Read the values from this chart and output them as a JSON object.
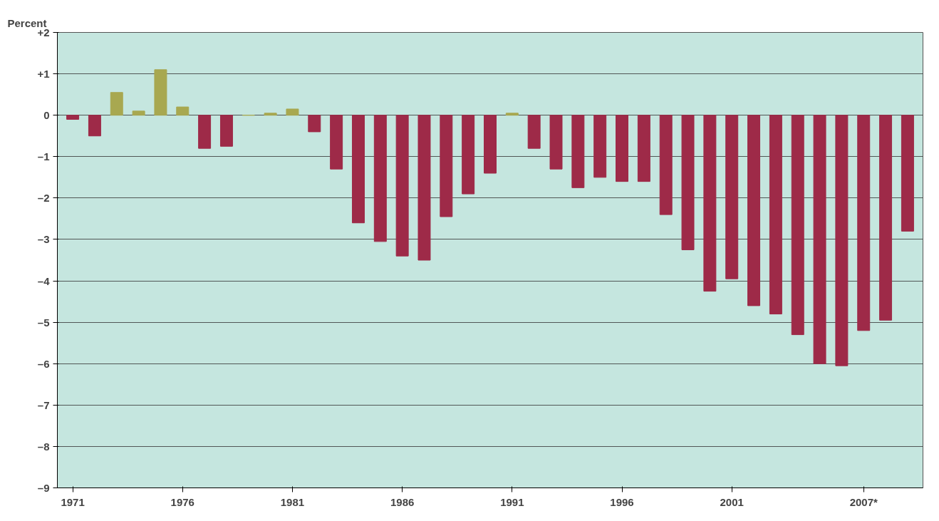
{
  "chart_data": {
    "type": "bar",
    "ylabel": "Percent",
    "categories": [
      "1971",
      null,
      null,
      null,
      null,
      "1976",
      null,
      null,
      null,
      null,
      "1981",
      null,
      null,
      null,
      null,
      "1986",
      null,
      null,
      null,
      null,
      "1991",
      null,
      null,
      null,
      null,
      "1996",
      null,
      null,
      null,
      null,
      "2001",
      null,
      null,
      null,
      null,
      null,
      "2007*",
      null,
      null
    ],
    "values": [
      -0.1,
      -0.5,
      0.55,
      0.1,
      1.1,
      0.2,
      -0.8,
      -0.75,
      0,
      0.05,
      0.15,
      -0.4,
      -1.3,
      -2.6,
      -3.05,
      -3.4,
      -3.5,
      -2.45,
      -1.9,
      -1.4,
      0.05,
      -0.8,
      -1.3,
      -1.75,
      -1.5,
      -1.6,
      -1.6,
      -2.4,
      -3.25,
      -4.25,
      -3.95,
      -4.6,
      -4.8,
      -5.3,
      -6.0,
      -6.05,
      -5.2,
      -4.95,
      -2.8
    ],
    "colors": [
      "#9e2a48",
      "#9e2a48",
      "#a8a850",
      "#a8a850",
      "#a8a850",
      "#a8a850",
      "#9e2a48",
      "#9e2a48",
      "#a8a850",
      "#a8a850",
      "#a8a850",
      "#9e2a48",
      "#9e2a48",
      "#9e2a48",
      "#9e2a48",
      "#9e2a48",
      "#9e2a48",
      "#9e2a48",
      "#9e2a48",
      "#9e2a48",
      "#a8a850",
      "#9e2a48",
      "#9e2a48",
      "#9e2a48",
      "#9e2a48",
      "#9e2a48",
      "#9e2a48",
      "#9e2a48",
      "#9e2a48",
      "#9e2a48",
      "#9e2a48",
      "#9e2a48",
      "#9e2a48",
      "#9e2a48",
      "#9e2a48",
      "#9e2a48",
      "#9e2a48",
      "#9e2a48",
      "#9e2a48"
    ],
    "ylim": [
      -9,
      2
    ],
    "yticks": [
      {
        "value": 2,
        "label": "+2"
      },
      {
        "value": 1,
        "label": "+1"
      },
      0,
      {
        "value": -1,
        "label": "–1"
      },
      {
        "value": -2,
        "label": "–2"
      },
      {
        "value": -3,
        "label": "–3"
      },
      {
        "value": -4,
        "label": "–4"
      },
      {
        "value": -5,
        "label": "–5"
      },
      {
        "value": -6,
        "label": "–6"
      },
      {
        "value": -7,
        "label": "–7"
      },
      {
        "value": -8,
        "label": "–8"
      },
      {
        "value": -9,
        "label": "–9"
      }
    ],
    "grid": "y"
  }
}
